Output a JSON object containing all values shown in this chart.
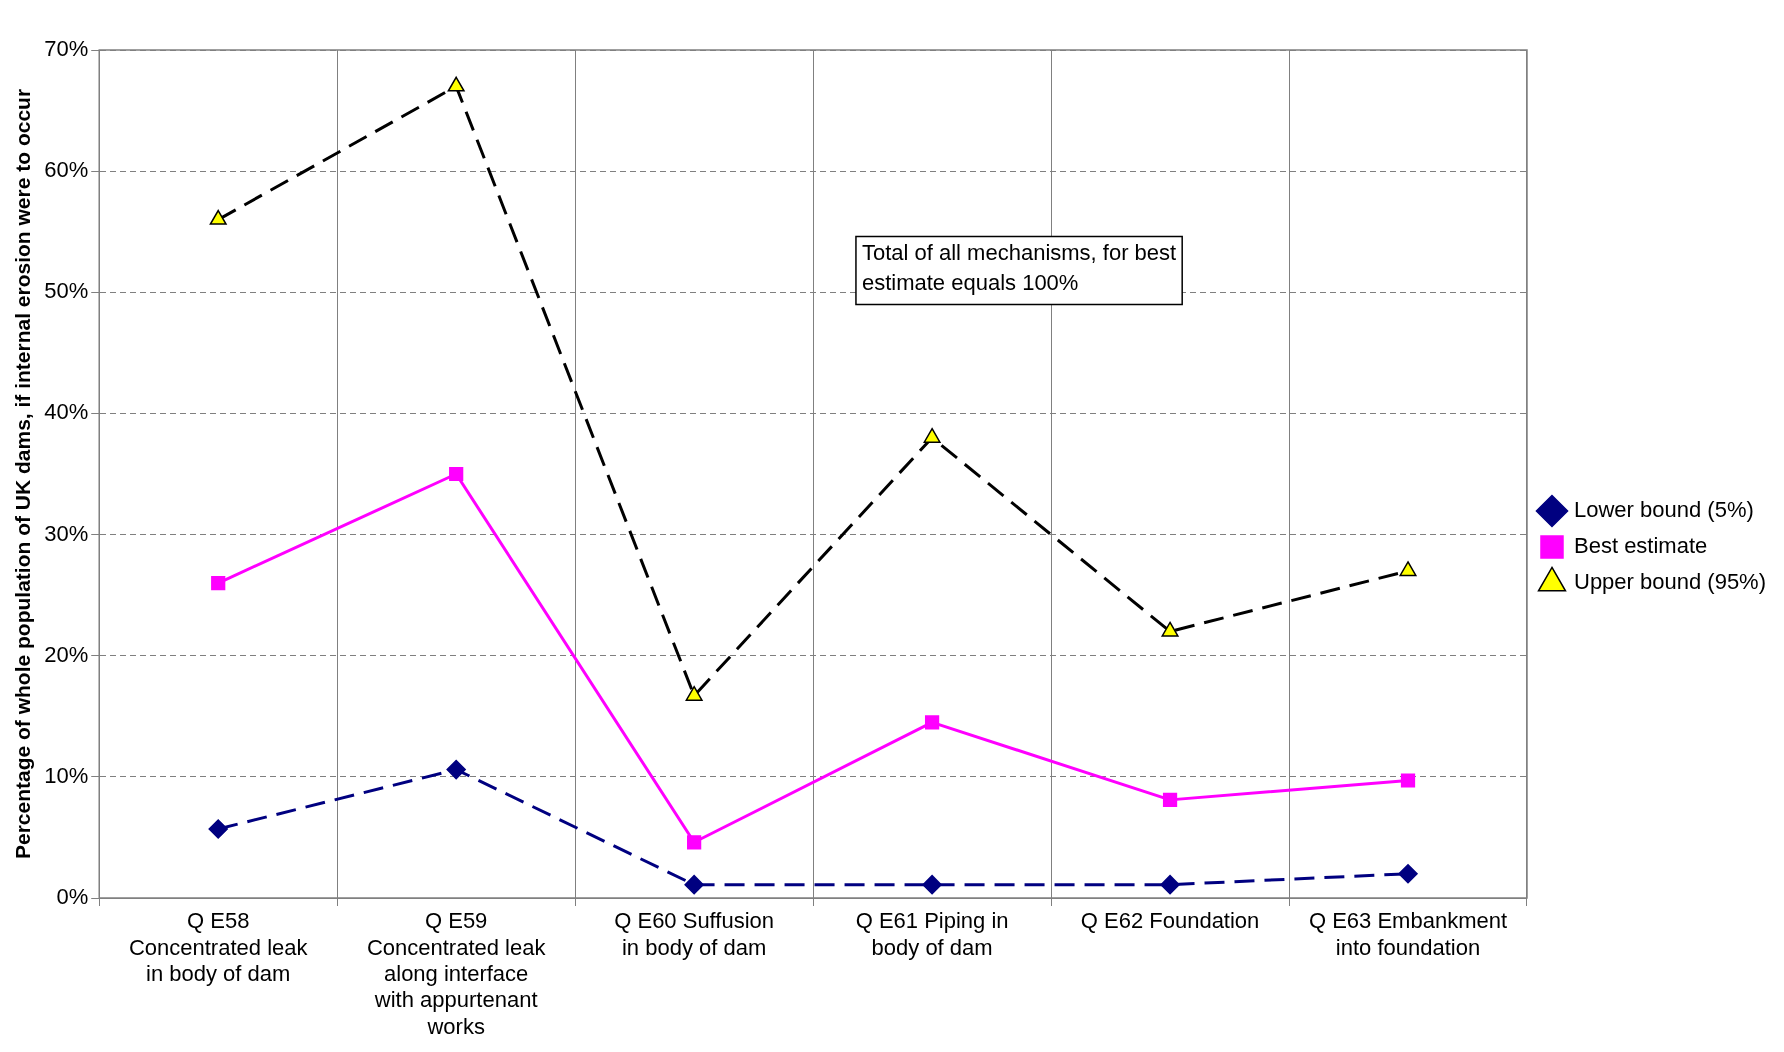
{
  "chart_data": {
    "type": "line",
    "ylabel": "Percentage of whole population of UK dams, if internal erosion were to occur",
    "categories": [
      "Q E58 Concentrated leak in body of dam",
      "Q E59 Concentrated leak along interface with appurtenant works",
      "Q E60 Suffusion in body of dam",
      "Q E61 Piping in body of dam",
      "Q E62 Foundation",
      "Q E63 Embankment into foundation"
    ],
    "series": [
      {
        "name": "Lower bound (5%)",
        "color": "#000080",
        "values": [
          5.7,
          10.6,
          1.1,
          1.1,
          1.1,
          2.0
        ],
        "marker": "diamond",
        "line_style": "dashed"
      },
      {
        "name": "Best estimate",
        "color": "#ff00ff",
        "values": [
          26,
          35,
          4.6,
          14.5,
          8.1,
          9.7
        ],
        "marker": "square",
        "line_style": "solid"
      },
      {
        "name": "Upper bound (95%)",
        "color": "#000000",
        "colors": [
          "#ffff00",
          "#ffff00",
          "#ffff00",
          "#ffff00",
          "#ffff00",
          "#ffff00"
        ],
        "values": [
          56,
          67,
          16.7,
          38,
          22,
          27
        ],
        "marker": "triangle",
        "line_style": "dashed"
      }
    ],
    "ylim": [
      0,
      70
    ],
    "yticks": [
      {
        "value": 0,
        "label": "0%"
      },
      {
        "value": 10,
        "label": "10%"
      },
      {
        "value": 20,
        "label": "20%"
      },
      {
        "value": 30,
        "label": "30%"
      },
      {
        "value": 40,
        "label": "40%"
      },
      {
        "value": 50,
        "label": "50%"
      },
      {
        "value": 60,
        "label": "60%"
      },
      {
        "value": 70,
        "label": "70%"
      }
    ],
    "grid": true,
    "legend": "right",
    "annotations": [
      "Total of all mechanisms, for best estimate equals 100%"
    ]
  }
}
